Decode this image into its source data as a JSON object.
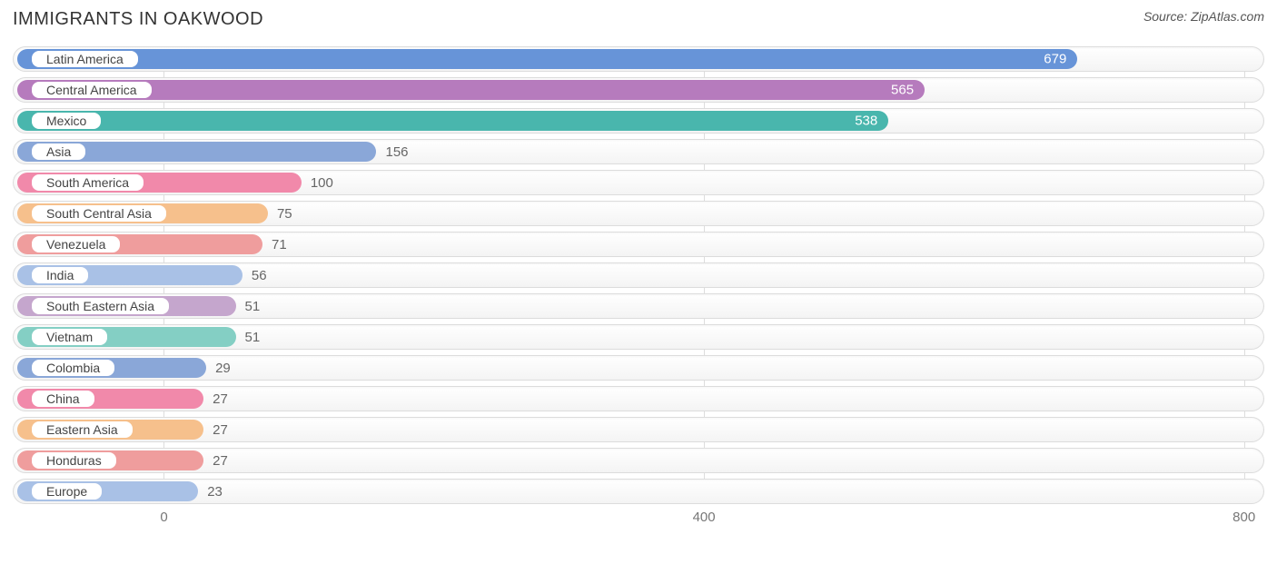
{
  "title": "IMMIGRANTS IN OAKWOOD",
  "source_text": "Source: ZipAtlas.com",
  "chart": {
    "type": "bar-horizontal",
    "background_color": "#ffffff",
    "track_border_color": "#dcdcdc",
    "track_bg_top": "#ffffff",
    "track_bg_bottom": "#f4f4f4",
    "value_font_color_outside": "#666666",
    "value_font_color_inside": "#ffffff",
    "title_color": "#333333",
    "title_fontsize": 20,
    "label_fontsize": 14,
    "value_fontsize": 15,
    "grid_color": "#dddddd",
    "x_domain_min": -112,
    "x_domain_max": 815,
    "x_ticks": [
      0,
      400,
      800
    ],
    "data": [
      {
        "label": "Latin America",
        "value": 679,
        "color": "#6794d8",
        "value_inside": true
      },
      {
        "label": "Central America",
        "value": 565,
        "color": "#b67bbd",
        "value_inside": true
      },
      {
        "label": "Mexico",
        "value": 538,
        "color": "#49b6ad",
        "value_inside": true
      },
      {
        "label": "Asia",
        "value": 156,
        "color": "#8aa7d8",
        "value_inside": false
      },
      {
        "label": "South America",
        "value": 100,
        "color": "#f189aa",
        "value_inside": false
      },
      {
        "label": "South Central Asia",
        "value": 75,
        "color": "#f6c08c",
        "value_inside": false
      },
      {
        "label": "Venezuela",
        "value": 71,
        "color": "#ef9d9d",
        "value_inside": false
      },
      {
        "label": "India",
        "value": 56,
        "color": "#a9c1e6",
        "value_inside": false
      },
      {
        "label": "South Eastern Asia",
        "value": 51,
        "color": "#c5a6cd",
        "value_inside": false
      },
      {
        "label": "Vietnam",
        "value": 51,
        "color": "#84cfc4",
        "value_inside": false
      },
      {
        "label": "Colombia",
        "value": 29,
        "color": "#8aa7d8",
        "value_inside": false
      },
      {
        "label": "China",
        "value": 27,
        "color": "#f189aa",
        "value_inside": false
      },
      {
        "label": "Eastern Asia",
        "value": 27,
        "color": "#f6c08c",
        "value_inside": false
      },
      {
        "label": "Honduras",
        "value": 27,
        "color": "#ef9d9d",
        "value_inside": false
      },
      {
        "label": "Europe",
        "value": 23,
        "color": "#a9c1e6",
        "value_inside": false
      }
    ]
  }
}
